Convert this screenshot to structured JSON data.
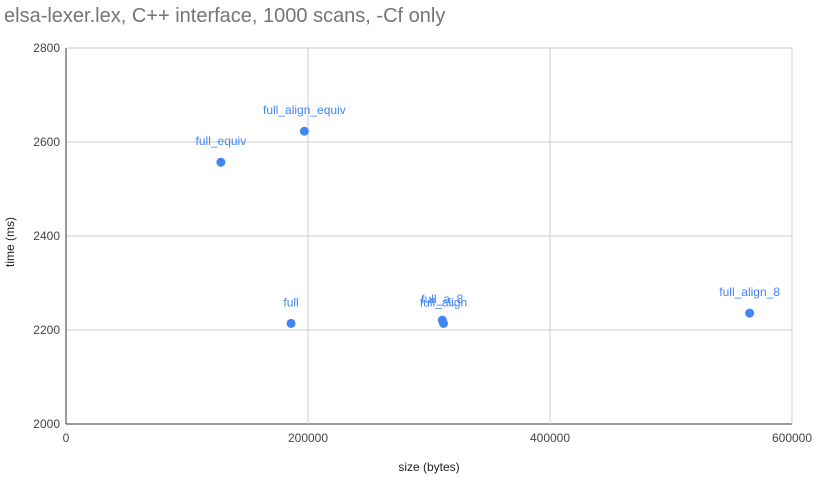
{
  "chart_data": {
    "type": "scatter",
    "title": "elsa-lexer.lex, C++ interface, 1000 scans, -Cf only",
    "xlabel": "size (bytes)",
    "ylabel": "time (ms)",
    "xlim": [
      0,
      600000
    ],
    "ylim": [
      2000,
      2800
    ],
    "xticks": [
      0,
      200000,
      400000,
      600000
    ],
    "yticks": [
      2000,
      2200,
      2400,
      2600,
      2800
    ],
    "x_tick_labels": [
      "0",
      "200000",
      "400000",
      "600000"
    ],
    "y_tick_labels": [
      "2000",
      "2200",
      "2400",
      "2600",
      "2800"
    ],
    "grid": true,
    "legend": "none",
    "color": "#4285f4",
    "points": [
      {
        "label": "full_equiv",
        "x": 128000,
        "y": 2557
      },
      {
        "label": "full_align_equiv",
        "x": 197000,
        "y": 2623
      },
      {
        "label": "full",
        "x": 186000,
        "y": 2214
      },
      {
        "label": "full_align",
        "x": 312000,
        "y": 2214
      },
      {
        "label": "full_align_8",
        "x": 565000,
        "y": 2236
      },
      {
        "label": "full_a_8",
        "x": 311000,
        "y": 2221
      }
    ]
  }
}
